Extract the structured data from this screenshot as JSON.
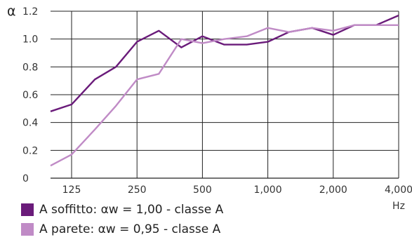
{
  "chart_data": {
    "type": "line",
    "title": "",
    "xlabel": "Hz",
    "ylabel": "α",
    "x": [
      100,
      125,
      160,
      200,
      250,
      315,
      400,
      500,
      630,
      800,
      1000,
      1250,
      1600,
      2000,
      2500,
      3150,
      4000
    ],
    "x_scale": "log",
    "xlim": [
      100,
      4000
    ],
    "ylim": [
      0,
      1.2
    ],
    "x_ticks": [
      125,
      250,
      500,
      1000,
      2000,
      4000
    ],
    "x_tick_labels": [
      "125",
      "250",
      "500",
      "1,000",
      "2,000",
      "4,000"
    ],
    "y_ticks": [
      0,
      0.2,
      0.4,
      0.6,
      0.8,
      1.0,
      1.2
    ],
    "y_tick_labels": [
      "0",
      "0.2",
      "0.4",
      "0.6",
      "0.8",
      "1.0",
      "1.2"
    ],
    "grid": "horizontal",
    "legend_position": "bottom-left",
    "series": [
      {
        "name": "A soffitto",
        "legend_suffix": ": αw = 1,00 - classe A",
        "color": "#6a1b7a",
        "values": [
          0.48,
          0.53,
          0.71,
          0.8,
          0.98,
          1.06,
          0.94,
          1.02,
          0.96,
          0.96,
          0.98,
          1.05,
          1.08,
          1.03,
          1.1,
          1.1,
          1.17
        ]
      },
      {
        "name": "A parete",
        "legend_suffix": ": αw = 0,95 - classe A",
        "color": "#c08bc6",
        "values": [
          0.09,
          0.17,
          0.35,
          0.52,
          0.71,
          0.75,
          1.0,
          0.97,
          1.0,
          1.02,
          1.08,
          1.05,
          1.08,
          1.06,
          1.1,
          1.1,
          1.1
        ]
      }
    ]
  },
  "legend": [
    {
      "label": "A soffitto",
      "suffix": ": αw = 1,00 - classe A"
    },
    {
      "label": "A parete",
      "suffix": ": αw = 0,95 - classe A"
    }
  ]
}
